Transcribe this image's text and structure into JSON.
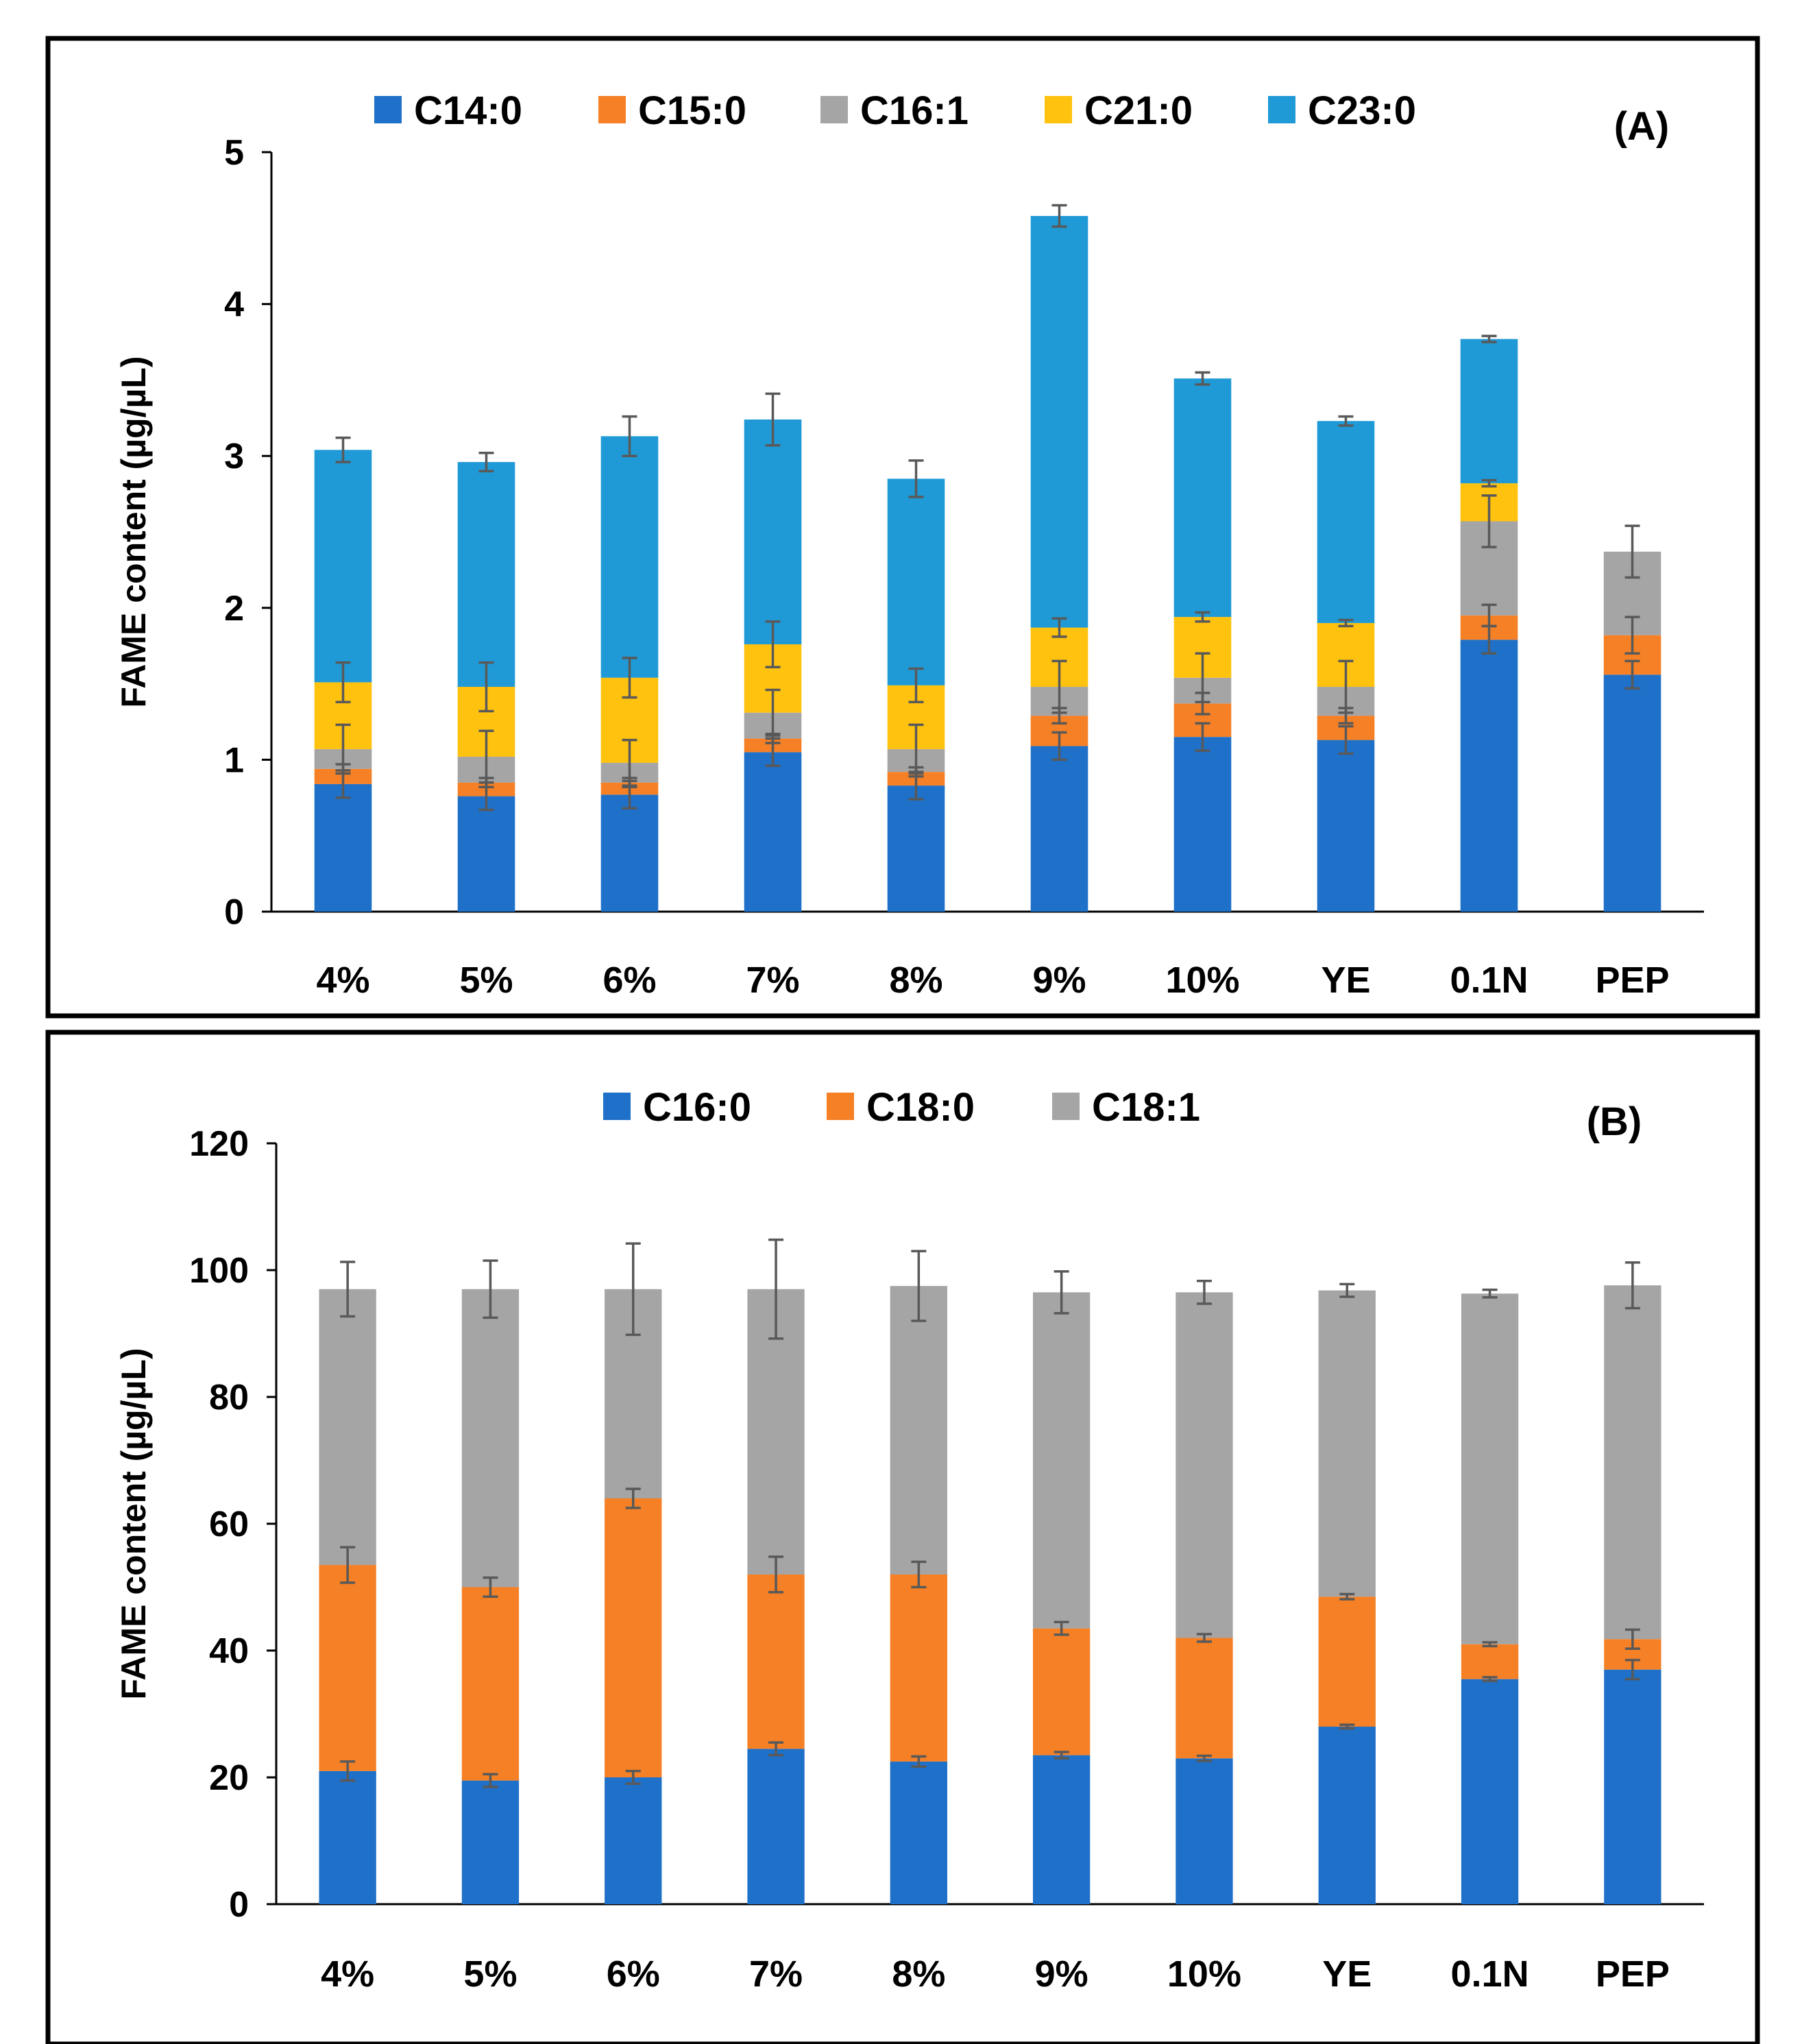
{
  "chart_data": [
    {
      "type": "bar",
      "stacked": true,
      "panel_label": "(A)",
      "ylabel": "FAME content (µg/µL)",
      "ylim": [
        0,
        5
      ],
      "yticks": [
        0,
        1,
        2,
        3,
        4,
        5
      ],
      "categories": [
        "4%",
        "5%",
        "6%",
        "7%",
        "8%",
        "9%",
        "10%",
        "YE",
        "0.1N",
        "PEP"
      ],
      "series": [
        {
          "name": "C14:0",
          "color": "#1F70C8",
          "values": [
            0.84,
            0.76,
            0.77,
            1.05,
            0.83,
            1.09,
            1.15,
            1.13,
            1.79,
            1.56
          ],
          "errors": [
            0.09,
            0.09,
            0.09,
            0.09,
            0.09,
            0.09,
            0.09,
            0.09,
            0.09,
            0.09
          ]
        },
        {
          "name": "C15:0",
          "color": "#F58025",
          "values": [
            0.1,
            0.09,
            0.08,
            0.09,
            0.09,
            0.2,
            0.22,
            0.16,
            0.16,
            0.26
          ],
          "errors": [
            0.03,
            0.03,
            0.03,
            0.03,
            0.03,
            0.05,
            0.07,
            0.05,
            0.07,
            0.12
          ]
        },
        {
          "name": "C16:1",
          "color": "#A5A5A5",
          "values": [
            0.13,
            0.17,
            0.13,
            0.17,
            0.15,
            0.19,
            0.17,
            0.19,
            0.62,
            0.55
          ],
          "errors": [
            0.16,
            0.17,
            0.15,
            0.15,
            0.16,
            0.17,
            0.16,
            0.17,
            0.17,
            0.17
          ]
        },
        {
          "name": "C21:0",
          "color": "#FFC20E",
          "values": [
            0.44,
            0.46,
            0.56,
            0.45,
            0.42,
            0.39,
            0.4,
            0.42,
            0.25,
            0.0
          ],
          "errors": [
            0.13,
            0.16,
            0.13,
            0.15,
            0.11,
            0.06,
            0.03,
            0.02,
            0.02,
            0.0
          ]
        },
        {
          "name": "C23:0",
          "color": "#1F9AD6",
          "values": [
            1.53,
            1.48,
            1.59,
            1.48,
            1.36,
            2.71,
            1.57,
            1.33,
            0.95,
            0.0
          ],
          "errors": [
            0.08,
            0.06,
            0.13,
            0.17,
            0.12,
            0.07,
            0.04,
            0.03,
            0.02,
            0.0
          ]
        }
      ]
    },
    {
      "type": "bar",
      "stacked": true,
      "panel_label": "(B)",
      "ylabel": "FAME content (µg/µL)",
      "ylim": [
        0,
        120
      ],
      "yticks": [
        0,
        20,
        40,
        60,
        80,
        100,
        120
      ],
      "categories": [
        "4%",
        "5%",
        "6%",
        "7%",
        "8%",
        "9%",
        "10%",
        "YE",
        "0.1N",
        "PEP"
      ],
      "series": [
        {
          "name": "C16:0",
          "color": "#1F70C8",
          "values": [
            21,
            19.5,
            20,
            24.5,
            22.5,
            23.5,
            23,
            28,
            35.5,
            37
          ],
          "errors": [
            1.5,
            1,
            1,
            1,
            0.8,
            0.5,
            0.4,
            0.3,
            0.3,
            1.5
          ]
        },
        {
          "name": "C18:0",
          "color": "#F58025",
          "values": [
            32.5,
            30.5,
            44,
            27.5,
            29.5,
            20,
            19,
            20.5,
            5.5,
            4.8
          ],
          "errors": [
            2.8,
            1.5,
            1.5,
            2.8,
            2,
            1,
            0.6,
            0.4,
            0.3,
            1.5
          ]
        },
        {
          "name": "C18:1",
          "color": "#A5A5A5",
          "values": [
            43.5,
            47,
            33,
            45,
            45.5,
            53,
            54.5,
            48.3,
            55.3,
            55.8
          ],
          "errors": [
            4.3,
            4.5,
            7.2,
            7.8,
            5.5,
            3.3,
            1.8,
            1,
            0.6,
            3.6
          ]
        }
      ]
    }
  ]
}
